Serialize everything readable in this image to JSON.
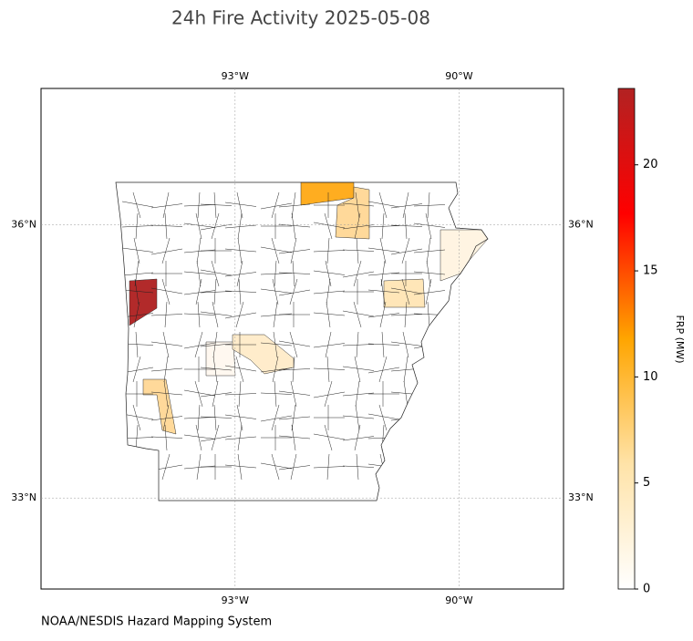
{
  "chart_data": {
    "type": "choropleth",
    "title": "24h Fire Activity 2025-05-08",
    "credit": "NOAA/NESDIS Hazard Mapping System",
    "xlim": [
      -95.6,
      -88.6
    ],
    "ylim": [
      32.0,
      37.5
    ],
    "xticks": [
      {
        "value": -93,
        "label": "93°W"
      },
      {
        "value": -90,
        "label": "90°W"
      }
    ],
    "yticks": [
      {
        "value": 33,
        "label": "33°N"
      },
      {
        "value": 36,
        "label": "36°N"
      }
    ],
    "grid": true,
    "values": [
      22.5,
      7,
      3,
      0.7,
      2.5,
      0.3,
      1.5,
      3
    ],
    "colors": [
      "#b22a2a",
      "#ffad20",
      "#ffd99a",
      "#fff4e2",
      "#ffe6b8",
      "#fff8f0",
      "#ffeccb",
      "#ffd99a"
    ],
    "colorbar": {
      "label": "FRP (MW)",
      "lim": [
        0,
        23.6
      ],
      "ticks": [
        0,
        5,
        10,
        15,
        20
      ],
      "colors": [
        "#ffffff",
        "#ffe3a8",
        "#ffa500",
        "#ff0000",
        "#b22222"
      ]
    }
  }
}
